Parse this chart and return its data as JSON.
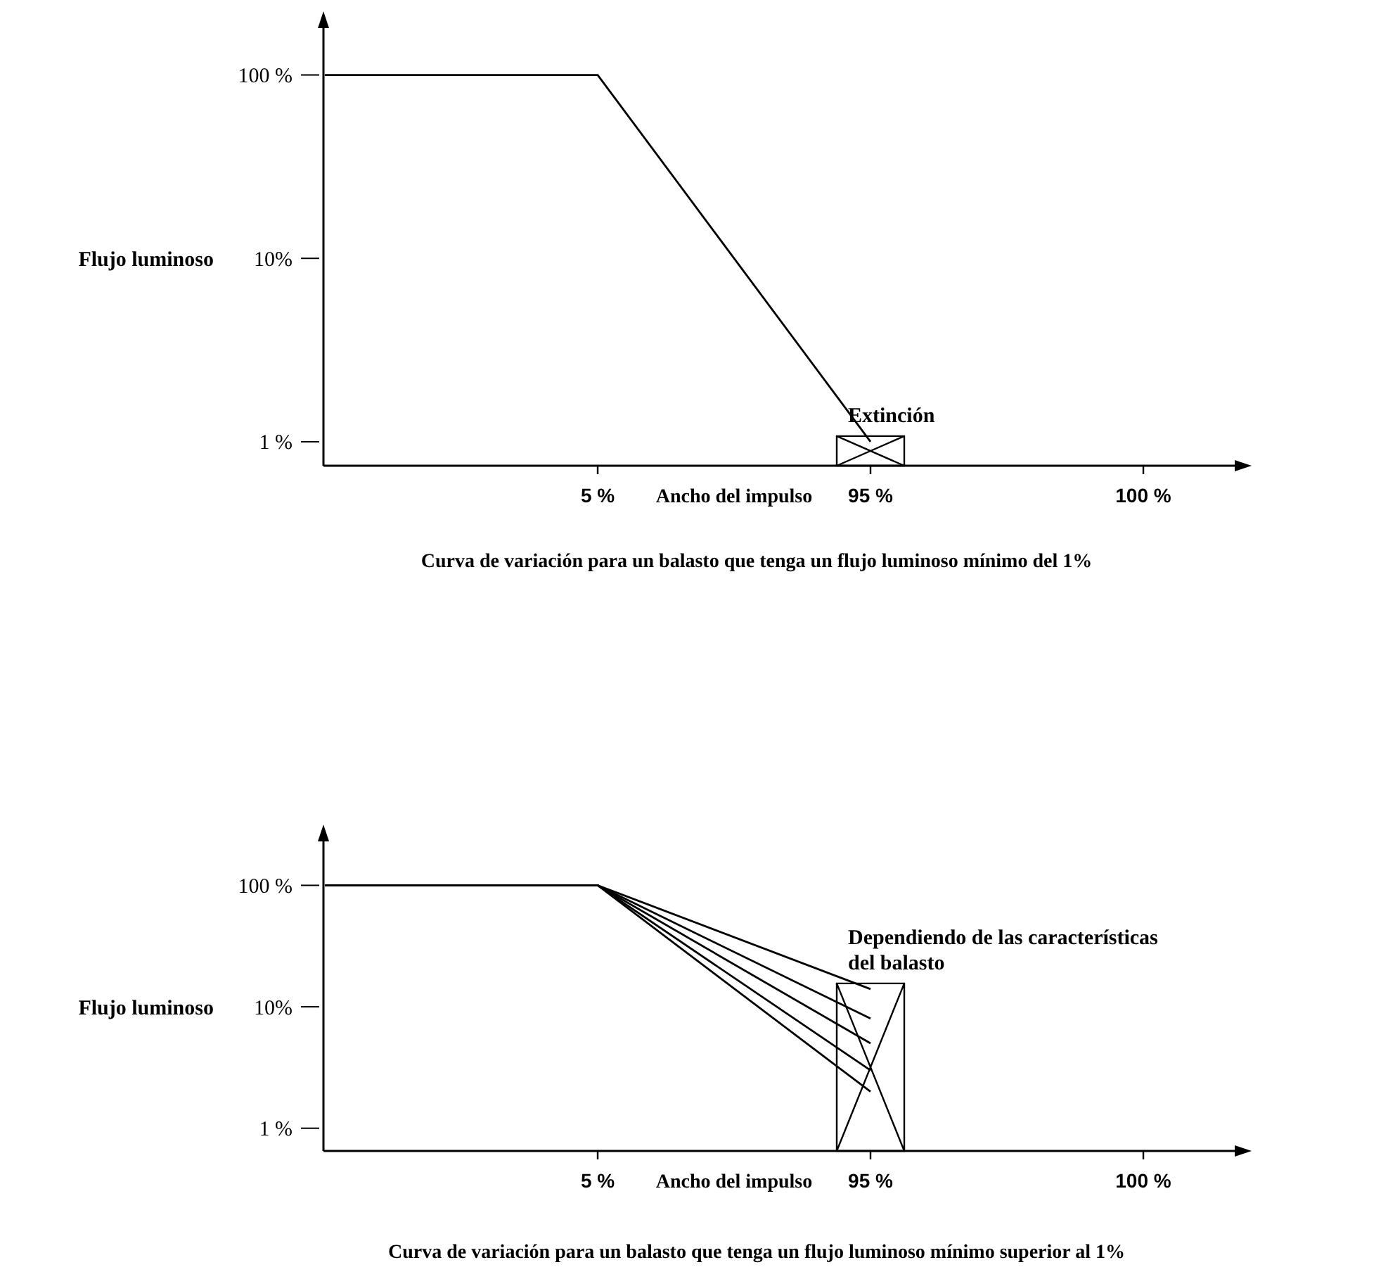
{
  "chart_data": [
    {
      "type": "line",
      "xlabel": "Ancho del impulso",
      "ylabel": "Flujo luminoso",
      "log": "y",
      "grid": false,
      "marker": "none",
      "line_style": "solid",
      "categories": [
        null,
        "5 %",
        "95 %",
        "100 %"
      ],
      "ylim": [
        0.74,
        180
      ],
      "yticks": [
        {
          "value": 1,
          "label": "1 %"
        },
        {
          "value": 10,
          "label": "10%"
        },
        {
          "value": 100,
          "label": "100 %"
        }
      ],
      "series": [
        {
          "color": "#000000",
          "values": [
            100,
            100,
            1,
            null
          ]
        }
      ],
      "annotations": [
        {
          "text": "Extinción",
          "x": "95 %",
          "y": 1
        },
        "Curva de variación para un balasto que tenga un flujo luminoso mínimo del 1%"
      ]
    },
    {
      "type": "line",
      "xlabel": "Ancho del impulso",
      "ylabel": "Flujo luminoso",
      "log": "y",
      "grid": false,
      "marker": "none",
      "line_style": "solid",
      "categories": [
        null,
        "5 %",
        "95 %",
        "100 %"
      ],
      "ylim": [
        0.65,
        230
      ],
      "yticks": [
        {
          "value": 1,
          "label": "1 %"
        },
        {
          "value": 10,
          "label": "10%"
        },
        {
          "value": 100,
          "label": "100 %"
        }
      ],
      "series": [
        {
          "color": "#000000",
          "values": [
            100,
            100,
            14,
            null
          ]
        },
        {
          "color": "#000000",
          "values": [
            100,
            100,
            8,
            null
          ]
        },
        {
          "color": "#000000",
          "values": [
            100,
            100,
            5,
            null
          ]
        },
        {
          "color": "#000000",
          "values": [
            100,
            100,
            3,
            null
          ]
        },
        {
          "color": "#000000",
          "values": [
            100,
            100,
            2,
            null
          ]
        }
      ],
      "annotations": [
        {
          "text": "Dependiendo de las características del balasto",
          "x": "95 %",
          "y": 14
        },
        "Curva de variación para un balasto que tenga un flujo luminoso mínimo superior al 1%"
      ]
    }
  ]
}
